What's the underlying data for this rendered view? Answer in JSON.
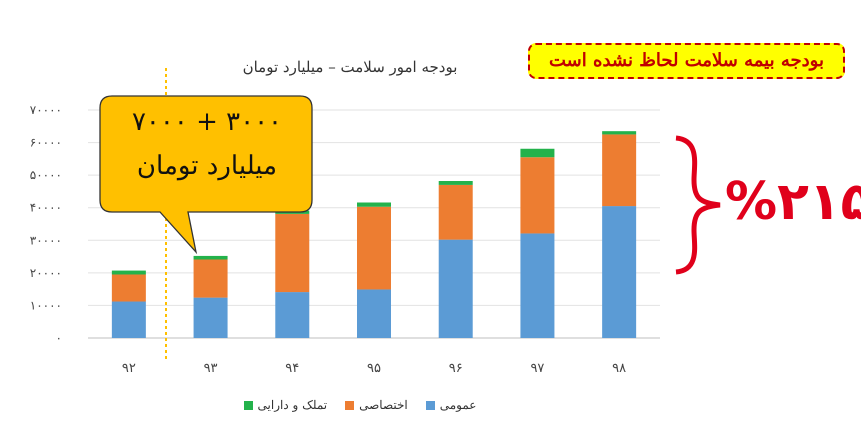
{
  "chart_data": {
    "type": "bar",
    "stacked": true,
    "title": "بودجه امور سلامت – میلیارد تومان",
    "categories": [
      "۹۲",
      "۹۳",
      "۹۴",
      "۹۵",
      "۹۶",
      "۹۷",
      "۹۸"
    ],
    "y_ticks": [
      "۰",
      "۱۰۰۰۰",
      "۲۰۰۰۰",
      "۳۰۰۰۰",
      "۴۰۰۰۰",
      "۵۰۰۰۰",
      "۶۰۰۰۰",
      "۷۰۰۰۰"
    ],
    "ylim": [
      0,
      70000
    ],
    "grid": true,
    "legend_position": "bottom",
    "series": [
      {
        "name": "عمومی",
        "color": "#5b9bd5",
        "values": [
          11200,
          12400,
          14100,
          14900,
          30200,
          32100,
          40500
        ]
      },
      {
        "name": "اختصاصی",
        "color": "#ed7d31",
        "values": [
          8300,
          11700,
          24000,
          25400,
          16800,
          23400,
          22000
        ]
      },
      {
        "name": "تملک و دارایی",
        "color": "#23b24b",
        "values": [
          1200,
          1100,
          1000,
          1300,
          1200,
          2600,
          1000
        ]
      }
    ]
  },
  "annotations": {
    "notice": "بودجه بیمه سلامت لحاظ نشده است",
    "callout_line1": "۳۰۰۰ + ۷۰۰۰",
    "callout_line2": "میلیارد تومان",
    "growth_percent": "%۲۱۵"
  },
  "colors": {
    "callout_fill": "#ffc000",
    "brace": "#e0001b",
    "notice_border": "#c00000",
    "notice_fill": "#ffff00",
    "marker_line": "#ffc000"
  }
}
